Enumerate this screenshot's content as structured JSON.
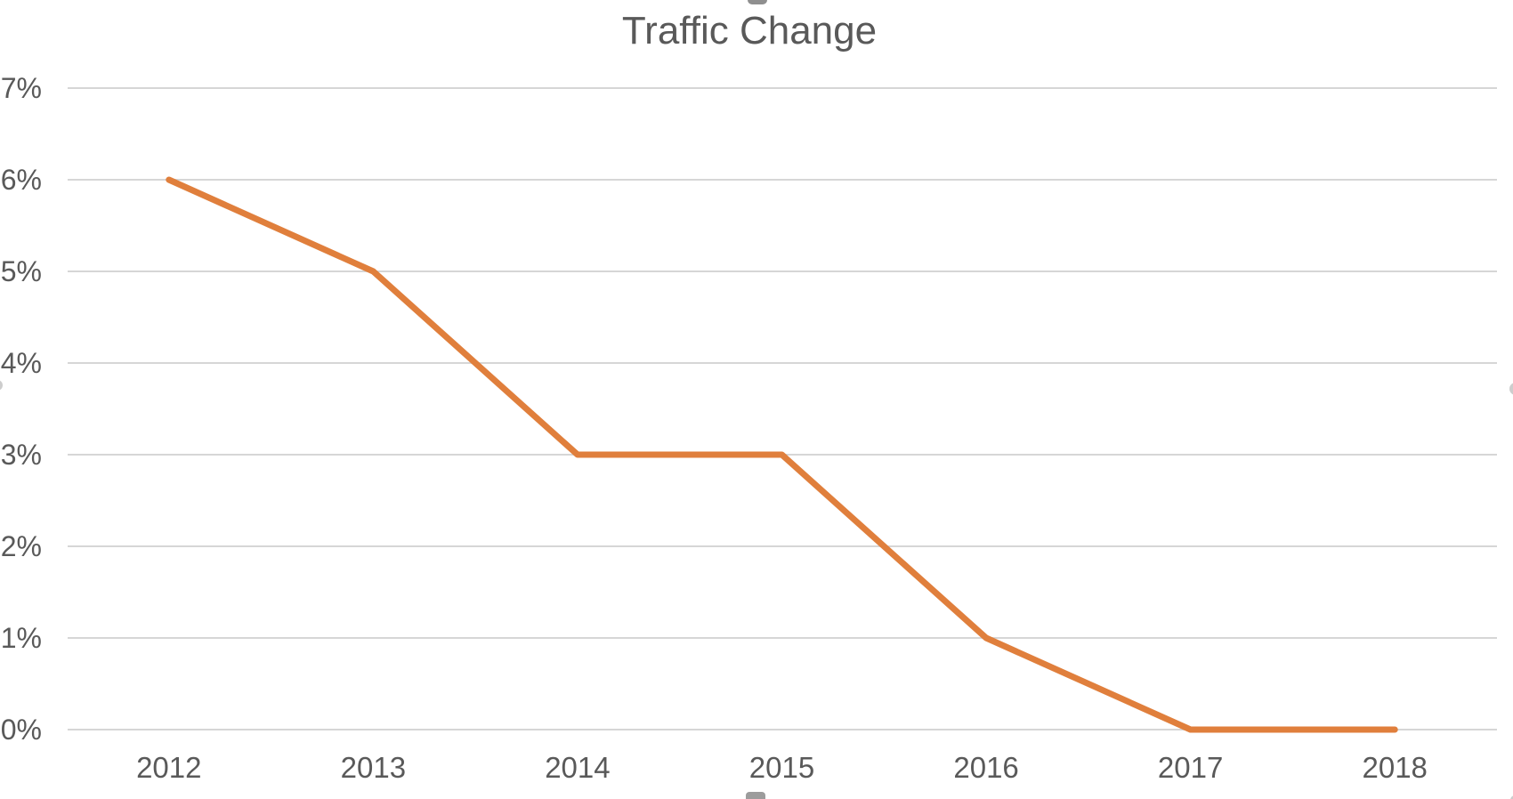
{
  "chart_data": {
    "type": "line",
    "title": "Traffic Change",
    "categories": [
      "2012",
      "2013",
      "2014",
      "2015",
      "2016",
      "2017",
      "2018"
    ],
    "series": [
      {
        "name": "Traffic Change",
        "values": [
          6,
          5,
          3,
          3,
          1,
          0,
          0
        ],
        "color": "#E07F3C"
      }
    ],
    "xlabel": "",
    "ylabel": "",
    "ylim": [
      0,
      7
    ],
    "ytick_step": 1,
    "ytick_labels": [
      "0%",
      "1%",
      "2%",
      "3%",
      "4%",
      "5%",
      "6%",
      "7%"
    ],
    "grid": "horizontal",
    "gridline_color": "#D6D6D6",
    "tick_label_color": "#595959",
    "title_color": "#595959",
    "legend_position": "none",
    "plot_background": "#ffffff"
  }
}
